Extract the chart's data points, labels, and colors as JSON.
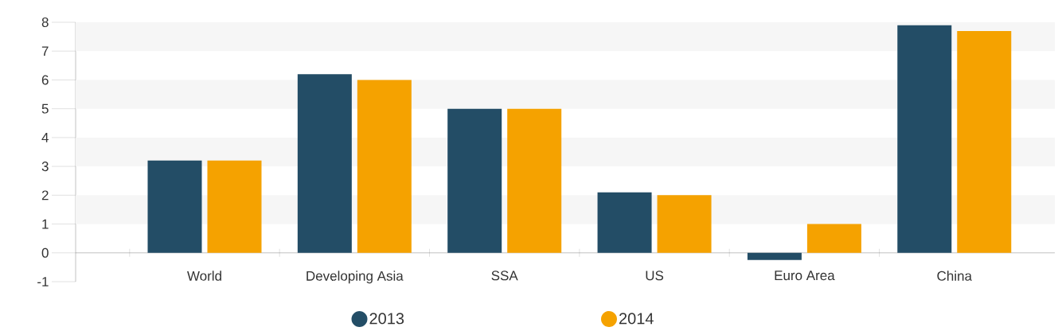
{
  "chart_data": {
    "type": "bar",
    "categories": [
      "World",
      "Developing Asia",
      "SSA",
      "US",
      "Euro Area",
      "China"
    ],
    "series": [
      {
        "name": "2013",
        "color": "#234d66",
        "values": [
          3.2,
          6.2,
          5.0,
          2.1,
          -0.25,
          7.9
        ]
      },
      {
        "name": "2014",
        "color": "#f5a200",
        "values": [
          3.2,
          6.0,
          5.0,
          2.0,
          1.0,
          7.7
        ]
      }
    ],
    "ylim": [
      -1,
      8
    ],
    "yticks": [
      -1,
      0,
      1,
      2,
      3,
      4,
      5,
      6,
      7,
      8
    ],
    "legend": "bottom",
    "bands": [
      {
        "axis": "y",
        "from": 1,
        "to": 2,
        "color": "#f6f6f6"
      },
      {
        "axis": "y",
        "from": 3,
        "to": 4,
        "color": "#f6f6f6"
      },
      {
        "axis": "y",
        "from": 5,
        "to": 6,
        "color": "#f6f6f6"
      },
      {
        "axis": "y",
        "from": 7,
        "to": 8,
        "color": "#f6f6f6"
      }
    ]
  }
}
